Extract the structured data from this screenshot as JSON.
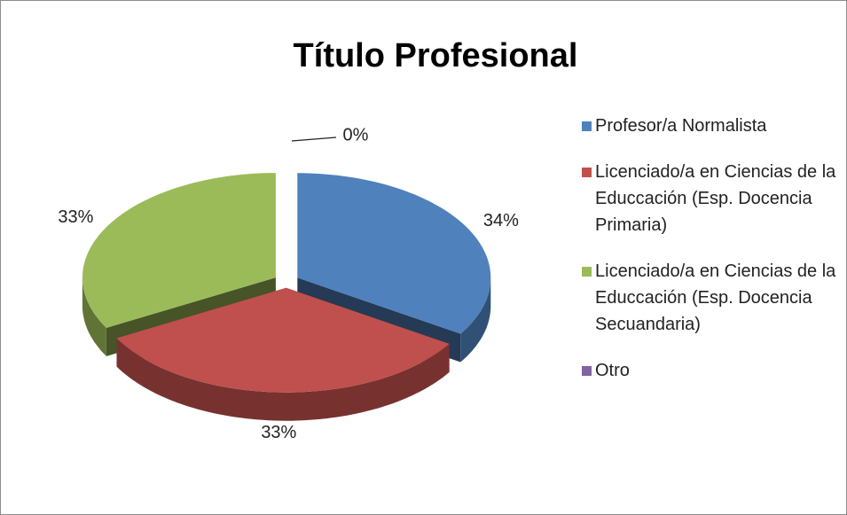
{
  "chart_data": {
    "type": "pie",
    "title": "Título Profesional",
    "categories": [
      "Profesor/a Normalista",
      "Licenciado/a en Ciencias de la Educcación (Esp. Docencia Primaria)",
      "Licenciado/a en Ciencias de la Educcación (Esp. Docencia Secuandaria)",
      "Otro"
    ],
    "values": [
      34,
      33,
      33,
      0
    ],
    "value_labels": [
      "34%",
      "33%",
      "33%",
      "0%"
    ],
    "colors": [
      "#4f81bd",
      "#c0504d",
      "#9bbb59",
      "#8064a2"
    ],
    "legend": "right"
  }
}
